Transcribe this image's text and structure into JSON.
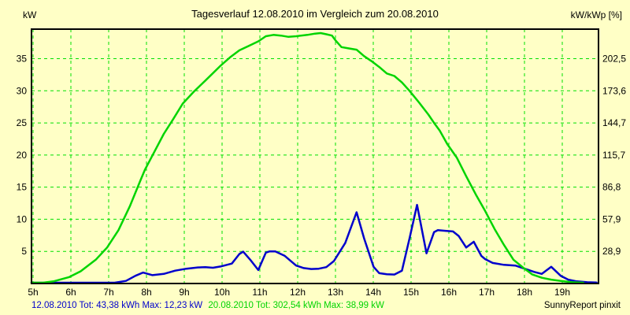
{
  "window": {
    "background": "#FFFFC6"
  },
  "chart_data": {
    "type": "line",
    "title": "Tagesverlauf 12.08.2010 im Vergleich zum 20.08.2010",
    "grid": {
      "show": true,
      "color": "#00E000",
      "style": "dashed"
    },
    "border_color": "#000000",
    "left_axis": {
      "unit": "kW",
      "range": [
        0,
        39.6
      ],
      "ticks": [
        5,
        10,
        15,
        20,
        25,
        30,
        35
      ],
      "tick_labels": [
        "5",
        "10",
        "15",
        "20",
        "25",
        "30",
        "35"
      ]
    },
    "right_axis": {
      "unit": "kW/kWp [%]",
      "tick_labels": [
        "28,9",
        "57,9",
        "86,8",
        "115,7",
        "144,7",
        "173,6",
        "202,5"
      ]
    },
    "x_axis": {
      "range": [
        5,
        20
      ],
      "tick_hours": [
        5,
        6,
        7,
        8,
        9,
        10,
        11,
        12,
        13,
        14,
        15,
        16,
        17,
        18,
        19
      ],
      "tick_labels": [
        "5h",
        "6h",
        "7h",
        "8h",
        "9h",
        "10h",
        "11h",
        "12h",
        "13h",
        "14h",
        "15h",
        "16h",
        "17h",
        "18h",
        "19h"
      ]
    },
    "series": [
      {
        "name": "12.08.2010",
        "color": "#0000CC",
        "total": "43,38 kWh",
        "max": "12,23 kW",
        "points": [
          [
            5.0,
            0.02
          ],
          [
            5.5,
            0.02
          ],
          [
            6.0,
            0.02
          ],
          [
            6.5,
            0.02
          ],
          [
            7.0,
            0.02
          ],
          [
            7.2,
            0.05
          ],
          [
            7.5,
            0.4
          ],
          [
            7.75,
            1.2
          ],
          [
            7.95,
            1.7
          ],
          [
            8.2,
            1.3
          ],
          [
            8.5,
            1.5
          ],
          [
            8.8,
            2.0
          ],
          [
            9.1,
            2.3
          ],
          [
            9.4,
            2.5
          ],
          [
            9.6,
            2.55
          ],
          [
            9.8,
            2.45
          ],
          [
            10.0,
            2.65
          ],
          [
            10.3,
            3.1
          ],
          [
            10.5,
            4.6
          ],
          [
            10.6,
            4.95
          ],
          [
            10.8,
            3.6
          ],
          [
            11.0,
            2.1
          ],
          [
            11.2,
            4.8
          ],
          [
            11.3,
            5.0
          ],
          [
            11.45,
            5.0
          ],
          [
            11.7,
            4.3
          ],
          [
            12.0,
            2.8
          ],
          [
            12.2,
            2.4
          ],
          [
            12.4,
            2.25
          ],
          [
            12.6,
            2.3
          ],
          [
            12.8,
            2.55
          ],
          [
            13.0,
            3.5
          ],
          [
            13.3,
            6.3
          ],
          [
            13.6,
            11.1
          ],
          [
            13.8,
            7.0
          ],
          [
            14.05,
            2.6
          ],
          [
            14.2,
            1.6
          ],
          [
            14.4,
            1.45
          ],
          [
            14.6,
            1.4
          ],
          [
            14.8,
            2.0
          ],
          [
            15.0,
            7.0
          ],
          [
            15.2,
            12.23
          ],
          [
            15.45,
            4.7
          ],
          [
            15.65,
            8.0
          ],
          [
            15.75,
            8.3
          ],
          [
            15.95,
            8.2
          ],
          [
            16.15,
            8.1
          ],
          [
            16.3,
            7.4
          ],
          [
            16.5,
            5.6
          ],
          [
            16.7,
            6.5
          ],
          [
            16.9,
            4.3
          ],
          [
            17.0,
            3.8
          ],
          [
            17.2,
            3.2
          ],
          [
            17.5,
            2.9
          ],
          [
            17.8,
            2.8
          ],
          [
            18.0,
            2.4
          ],
          [
            18.3,
            1.8
          ],
          [
            18.5,
            1.5
          ],
          [
            18.75,
            2.6
          ],
          [
            19.0,
            1.2
          ],
          [
            19.2,
            0.6
          ],
          [
            19.4,
            0.35
          ],
          [
            19.7,
            0.2
          ],
          [
            19.95,
            0.15
          ]
        ]
      },
      {
        "name": "20.08.2010",
        "color": "#00D400",
        "total": "302,54 kWh",
        "max": "38,99 kW",
        "points": [
          [
            5.0,
            0.05
          ],
          [
            5.3,
            0.1
          ],
          [
            5.6,
            0.35
          ],
          [
            6.0,
            1.0
          ],
          [
            6.3,
            1.9
          ],
          [
            6.7,
            3.7
          ],
          [
            7.0,
            5.6
          ],
          [
            7.3,
            8.3
          ],
          [
            7.6,
            12.0
          ],
          [
            7.9,
            16.3
          ],
          [
            8.0,
            17.7
          ],
          [
            8.25,
            20.5
          ],
          [
            8.5,
            23.3
          ],
          [
            8.75,
            25.6
          ],
          [
            9.0,
            28.0
          ],
          [
            9.3,
            29.9
          ],
          [
            9.6,
            31.6
          ],
          [
            10.0,
            33.9
          ],
          [
            10.25,
            35.2
          ],
          [
            10.5,
            36.3
          ],
          [
            10.75,
            37.0
          ],
          [
            11.0,
            37.7
          ],
          [
            11.2,
            38.5
          ],
          [
            11.4,
            38.7
          ],
          [
            11.6,
            38.6
          ],
          [
            11.8,
            38.4
          ],
          [
            12.0,
            38.5
          ],
          [
            12.3,
            38.7
          ],
          [
            12.5,
            38.9
          ],
          [
            12.65,
            38.99
          ],
          [
            12.8,
            38.8
          ],
          [
            12.95,
            38.6
          ],
          [
            13.05,
            37.8
          ],
          [
            13.2,
            36.8
          ],
          [
            13.4,
            36.6
          ],
          [
            13.6,
            36.4
          ],
          [
            13.8,
            35.4
          ],
          [
            14.0,
            34.6
          ],
          [
            14.2,
            33.7
          ],
          [
            14.4,
            32.7
          ],
          [
            14.6,
            32.3
          ],
          [
            14.8,
            31.3
          ],
          [
            15.0,
            30.0
          ],
          [
            15.25,
            28.2
          ],
          [
            15.5,
            26.3
          ],
          [
            15.65,
            25.0
          ],
          [
            15.8,
            23.8
          ],
          [
            16.0,
            21.7
          ],
          [
            16.25,
            19.6
          ],
          [
            16.5,
            16.7
          ],
          [
            16.75,
            13.9
          ],
          [
            17.0,
            11.3
          ],
          [
            17.25,
            8.5
          ],
          [
            17.5,
            6.0
          ],
          [
            17.75,
            3.7
          ],
          [
            18.0,
            2.5
          ],
          [
            18.25,
            1.4
          ],
          [
            18.5,
            0.9
          ],
          [
            18.75,
            0.6
          ],
          [
            19.0,
            0.4
          ],
          [
            19.3,
            0.2
          ],
          [
            19.6,
            0.1
          ]
        ]
      }
    ],
    "legend": {
      "position": "bottom",
      "entries": [
        "12.08.2010 Tot: 43,38 kWh Max: 12,23 kW",
        "20.08.2010 Tot: 302,54 kWh Max: 38,99 kW"
      ]
    },
    "watermark": "SunnyReport pinxit"
  }
}
